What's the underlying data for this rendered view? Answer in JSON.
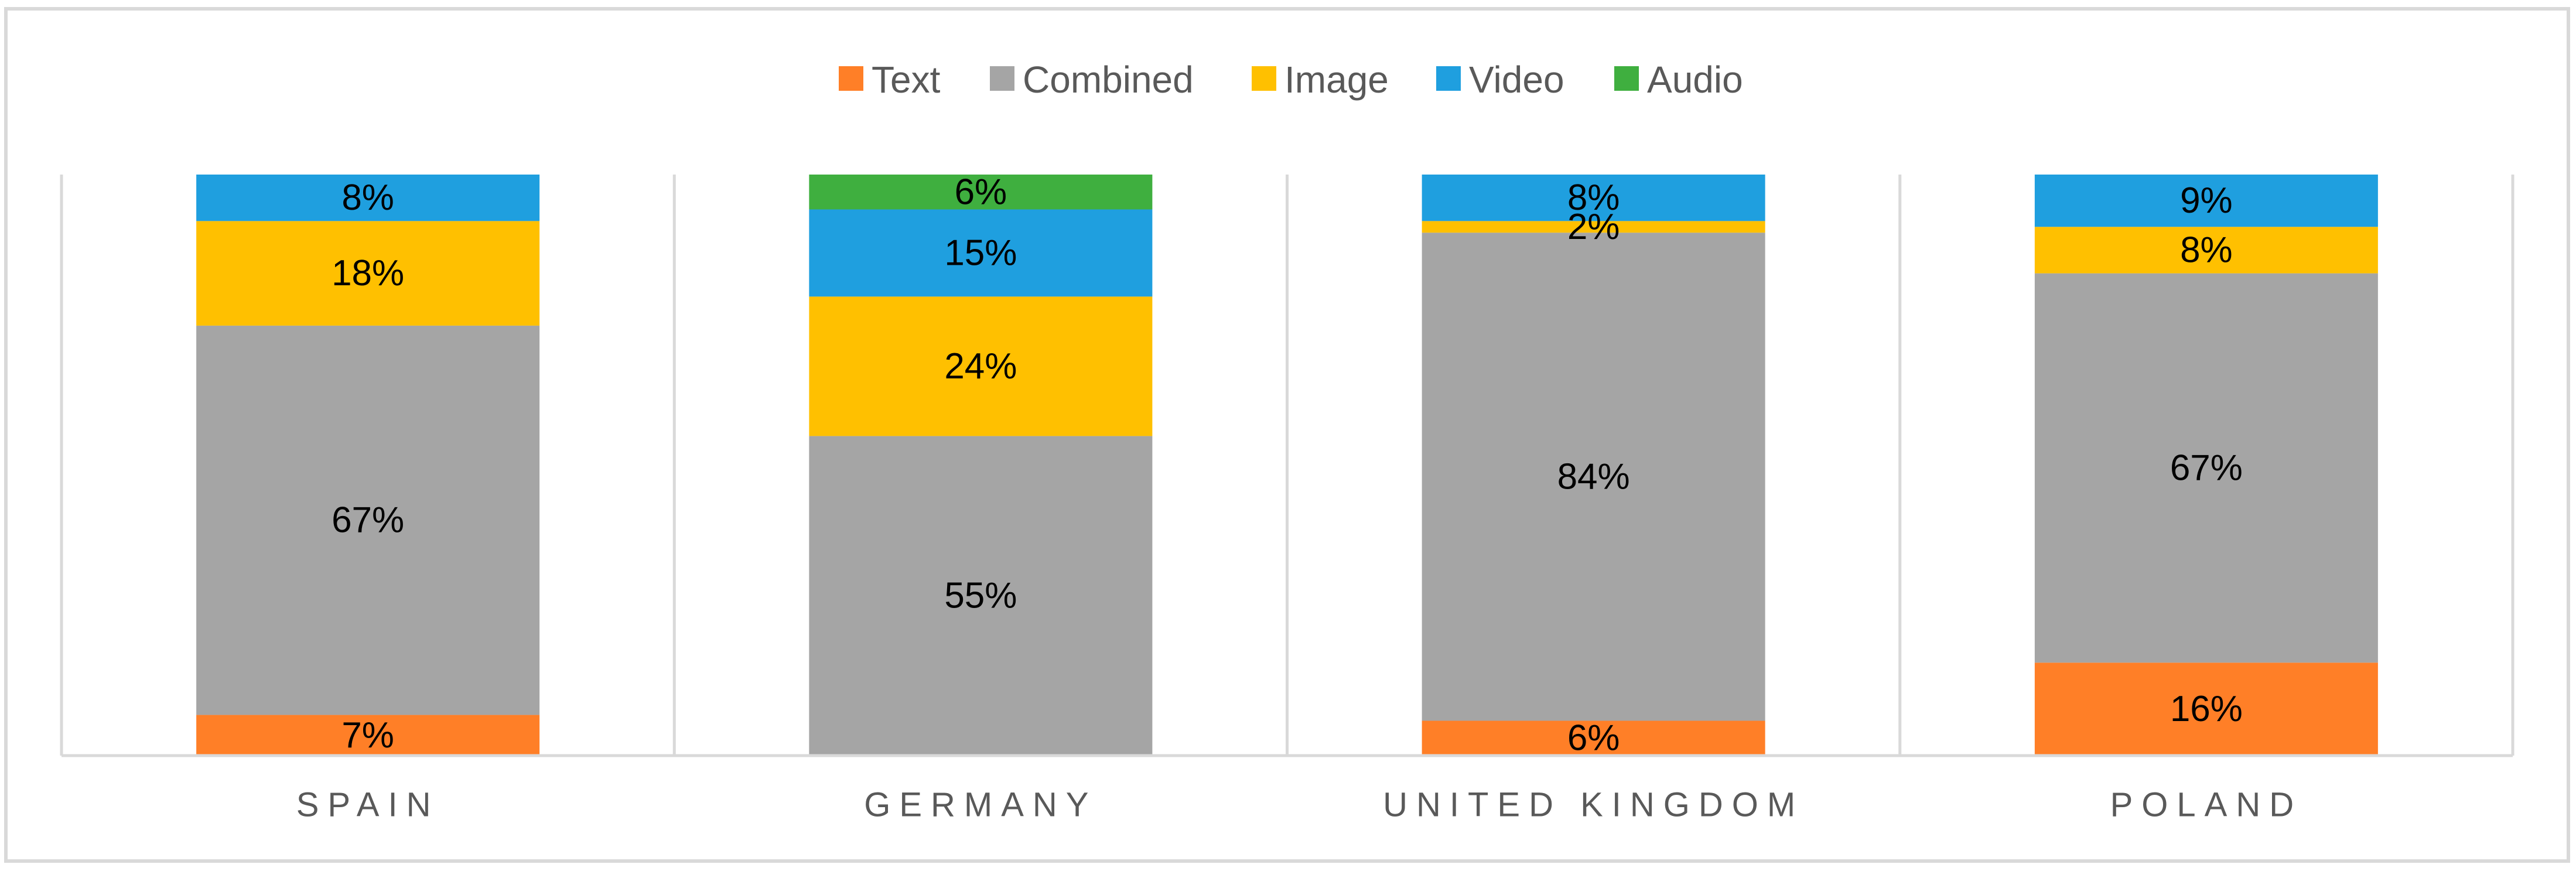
{
  "chart_data": {
    "type": "bar",
    "stacked": true,
    "normalized": true,
    "categories": [
      "SPAIN",
      "GERMANY",
      "UNITED KINGDOM",
      "POLAND"
    ],
    "series": [
      {
        "name": "Text",
        "color": "#FF7F27",
        "values": [
          7,
          0,
          6,
          16
        ],
        "labels": [
          "7%",
          "",
          "6%",
          "16%"
        ]
      },
      {
        "name": "Combined",
        "color": "#A5A5A5",
        "values": [
          67,
          55,
          84,
          67
        ],
        "labels": [
          "67%",
          "55%",
          "84%",
          "67%"
        ]
      },
      {
        "name": "Image",
        "color": "#FFC000",
        "values": [
          18,
          24,
          2,
          8
        ],
        "labels": [
          "18%",
          "24%",
          "2%",
          "8%"
        ]
      },
      {
        "name": "Video",
        "color": "#1F9FDF",
        "values": [
          8,
          15,
          8,
          9
        ],
        "labels": [
          "8%",
          "15%",
          "8%",
          "9%"
        ]
      },
      {
        "name": "Audio",
        "color": "#3FAF3F",
        "values": [
          0,
          6,
          0,
          0
        ],
        "labels": [
          "",
          "6%",
          "",
          ""
        ]
      }
    ],
    "legend_order": [
      "Text",
      "Combined",
      "Image",
      "Video",
      "Audio"
    ],
    "legend_position": "top",
    "ylim": [
      0,
      100
    ],
    "grid": "vertical separators"
  }
}
